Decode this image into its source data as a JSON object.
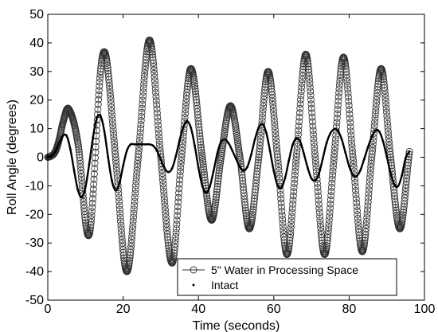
{
  "chart_data": {
    "type": "line",
    "xlabel": "Time (seconds)",
    "ylabel": "Roll Angle (degrees)",
    "xlim": [
      0,
      100
    ],
    "ylim": [
      -50,
      50
    ],
    "xticks": [
      0,
      20,
      40,
      60,
      80,
      100
    ],
    "yticks": [
      -50,
      -40,
      -30,
      -20,
      -10,
      0,
      10,
      20,
      30,
      40,
      50
    ],
    "grid": false,
    "legend_position": "bottom-right",
    "series": [
      {
        "name": "5\" Water in Processing Space",
        "marker": "open-circle",
        "color": "#333333",
        "x": [
          0,
          1,
          2,
          3,
          4,
          5.5,
          8,
          11,
          14,
          15.5,
          18,
          21,
          24,
          27,
          30,
          33,
          35.5,
          38,
          41,
          43.5,
          46,
          48.5,
          51,
          53.5,
          56,
          58.5,
          61,
          63.5,
          66,
          68.5,
          71,
          73.5,
          76,
          78.5,
          81,
          83.5,
          86,
          88.5,
          91,
          93.5,
          96
        ],
        "y": [
          0,
          0.5,
          2,
          6,
          12,
          17,
          5,
          -27,
          30,
          35,
          0,
          -40,
          0,
          41,
          0,
          -37,
          0,
          31,
          0,
          -22,
          0,
          18,
          0,
          -25,
          0,
          30,
          0,
          -34,
          0,
          36,
          0,
          -34,
          0,
          35,
          0,
          -33,
          0,
          31,
          0,
          -25,
          2
        ]
      },
      {
        "name": "Intact",
        "marker": "dot",
        "color": "#000000",
        "x": [
          0,
          1,
          2,
          3,
          4,
          5,
          6,
          7,
          8,
          9,
          10,
          11,
          12,
          13,
          14,
          15,
          16,
          17,
          18,
          19,
          20,
          21,
          22,
          23,
          24,
          25,
          26,
          27,
          28,
          29,
          30,
          31,
          32,
          33,
          34,
          35,
          36,
          37,
          38,
          39,
          40,
          41,
          42,
          43,
          44,
          45,
          46,
          47,
          48,
          49,
          50,
          51,
          52,
          53,
          54,
          55,
          56,
          57,
          58,
          59,
          60,
          61,
          62,
          63,
          64,
          65,
          66,
          67,
          68,
          69,
          70,
          71,
          72,
          73,
          74,
          75,
          76,
          77,
          78,
          79,
          80,
          81,
          82,
          83,
          84,
          85,
          86,
          87,
          88,
          89,
          90,
          91,
          92,
          93,
          94,
          95,
          96
        ],
        "y": [
          0,
          0.5,
          2,
          5,
          7.5,
          7.5,
          2.8,
          -4.7,
          -11.5,
          -14,
          -10.5,
          -2.4,
          6.9,
          13.6,
          14.5,
          9.2,
          0.1,
          -8.1,
          -11.6,
          -9.2,
          -3,
          2.3,
          4.5,
          4.5,
          4.5,
          4.5,
          4.5,
          4.5,
          4,
          2.2,
          -0.8,
          -3.8,
          -5.2,
          -3.9,
          0.4,
          6,
          10.6,
          12.6,
          10.3,
          4.1,
          -3.6,
          -9.9,
          -12.4,
          -10.3,
          -4.9,
          1.3,
          5.4,
          6.2,
          4.9,
          2.3,
          -0.6,
          -3.4,
          -4.7,
          -3.3,
          0.9,
          6.3,
          10.4,
          11.6,
          8.6,
          2.2,
          -4.8,
          -9.8,
          -10.6,
          -7.2,
          -1.2,
          4.3,
          6.6,
          5.5,
          1.2,
          -3.7,
          -7.4,
          -8.1,
          -5.7,
          -0.5,
          4.9,
          8.3,
          9.8,
          9.3,
          6.4,
          1.7,
          -3.1,
          -6.2,
          -6.6,
          -4.5,
          -0.6,
          3.5,
          7.1,
          9.4,
          9,
          5.6,
          0.2,
          -5.5,
          -9.6,
          -10.1,
          -6.4,
          -0.3,
          2
        ]
      }
    ]
  }
}
